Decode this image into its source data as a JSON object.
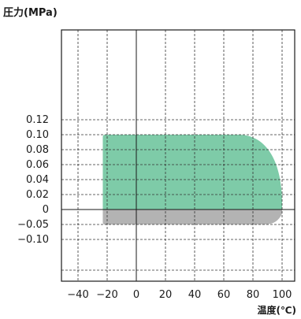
{
  "chart_data": {
    "type": "area",
    "ylabel": "圧力(MPa)",
    "xlabel": "温度(℃)",
    "x_ticks": [
      -40,
      -20,
      0,
      20,
      40,
      60,
      80,
      100
    ],
    "x_tick_labels": [
      "−40",
      "−20",
      "0",
      "20",
      "40",
      "60",
      "80",
      "100"
    ],
    "y_tick_labels": [
      "0.12",
      "0.10",
      "0.08",
      "0.06",
      "0.04",
      "0.02",
      "0",
      "−0.05",
      "−0.10"
    ],
    "y_ticks": [
      0.12,
      0.1,
      0.08,
      0.06,
      0.04,
      0.02,
      0,
      -0.05,
      -0.1
    ],
    "xlim": [
      -50,
      105
    ],
    "y_axis_note": "non-linear: 0.02 steps above 0, 0.05 steps below 0",
    "grid": true,
    "regions": [
      {
        "color": "#7ecba8",
        "x_range": [
          -23,
          100
        ],
        "y_range": [
          0,
          0.1
        ],
        "top_right_rounded_from_x": 70,
        "description": "positive pressure operating range"
      },
      {
        "color": "#b3b3b3",
        "x_range": [
          -23,
          100
        ],
        "y_range": [
          -0.05,
          0
        ],
        "description": "negative pressure operating range"
      }
    ]
  },
  "colors": {
    "green": "#7ecba8",
    "gray": "#b3b3b3",
    "grid": "#333333",
    "axis": "#1a1a1a"
  }
}
